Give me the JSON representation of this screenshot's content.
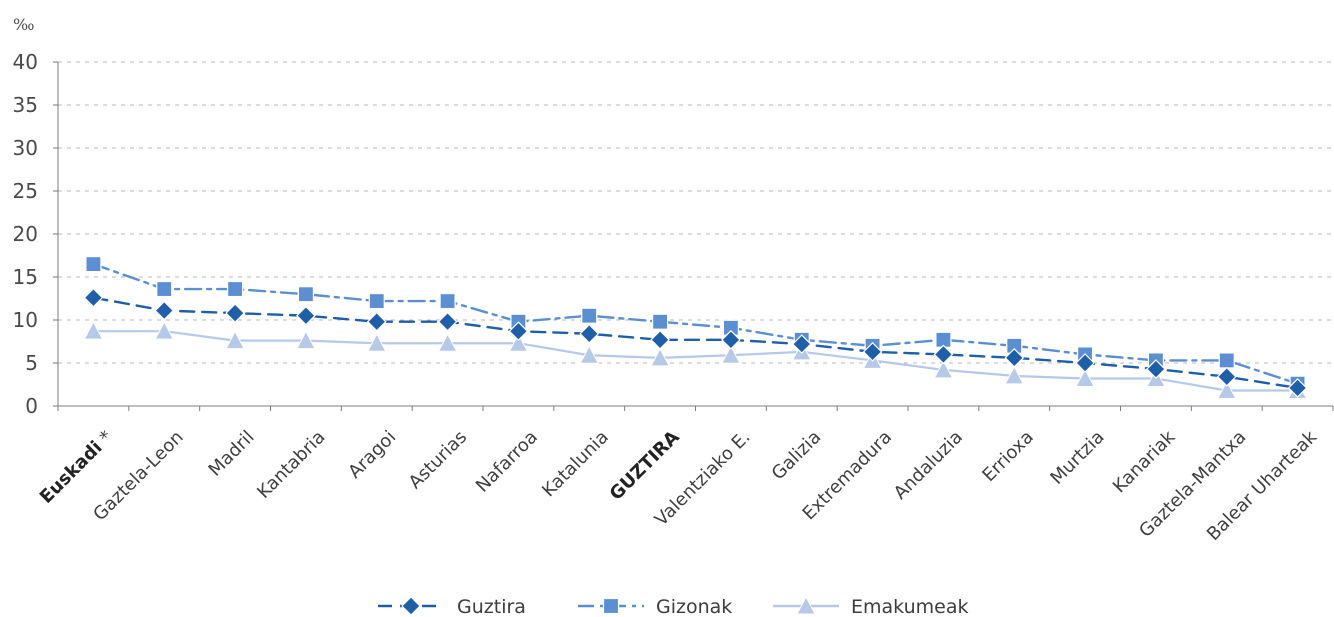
{
  "chart_data": {
    "type": "line",
    "title": "",
    "xlabel": "",
    "ylabel": "‰",
    "ylim": [
      0,
      40
    ],
    "yticks": [
      0,
      5,
      10,
      15,
      20,
      25,
      30,
      35,
      40
    ],
    "grid": true,
    "legend_position": "bottom-center",
    "categories": [
      "Euskadi *",
      "Gaztela-Leon",
      "Madril",
      "Kantabria",
      "Aragoi",
      "Asturias",
      "Nafarroa",
      "Katalunia",
      "GUZTIRA",
      "Valentziako E.",
      "Galizia",
      "Extremadura",
      "Andaluzia",
      "Errioxa",
      "Murtzia",
      "Kanariak",
      "Gaztela-Mantxa",
      "Balear Uharteak"
    ],
    "bold_categories": [
      "Euskadi",
      "GUZTIRA"
    ],
    "series": [
      {
        "name": "Guztira",
        "color": "#1f5ea8",
        "marker": "diamond",
        "line_style": "dashed",
        "values": [
          12.6,
          11.1,
          10.8,
          10.5,
          9.8,
          9.8,
          8.7,
          8.4,
          7.7,
          7.7,
          7.2,
          6.3,
          6.0,
          5.6,
          5.0,
          4.3,
          3.4,
          2.1
        ]
      },
      {
        "name": "Gizonak",
        "color": "#5b8fd1",
        "marker": "square",
        "line_style": "dash-dot",
        "values": [
          16.5,
          13.6,
          13.6,
          13.0,
          12.2,
          12.2,
          9.8,
          10.5,
          9.8,
          9.1,
          7.7,
          7.0,
          7.7,
          7.0,
          6.0,
          5.3,
          5.3,
          2.6
        ]
      },
      {
        "name": "Emakumeak",
        "color": "#b7c9e8",
        "marker": "triangle",
        "line_style": "solid",
        "values": [
          8.7,
          8.7,
          7.6,
          7.6,
          7.3,
          7.3,
          7.3,
          5.9,
          5.6,
          5.9,
          6.3,
          5.3,
          4.2,
          3.5,
          3.2,
          3.2,
          1.8,
          1.8
        ]
      }
    ]
  }
}
